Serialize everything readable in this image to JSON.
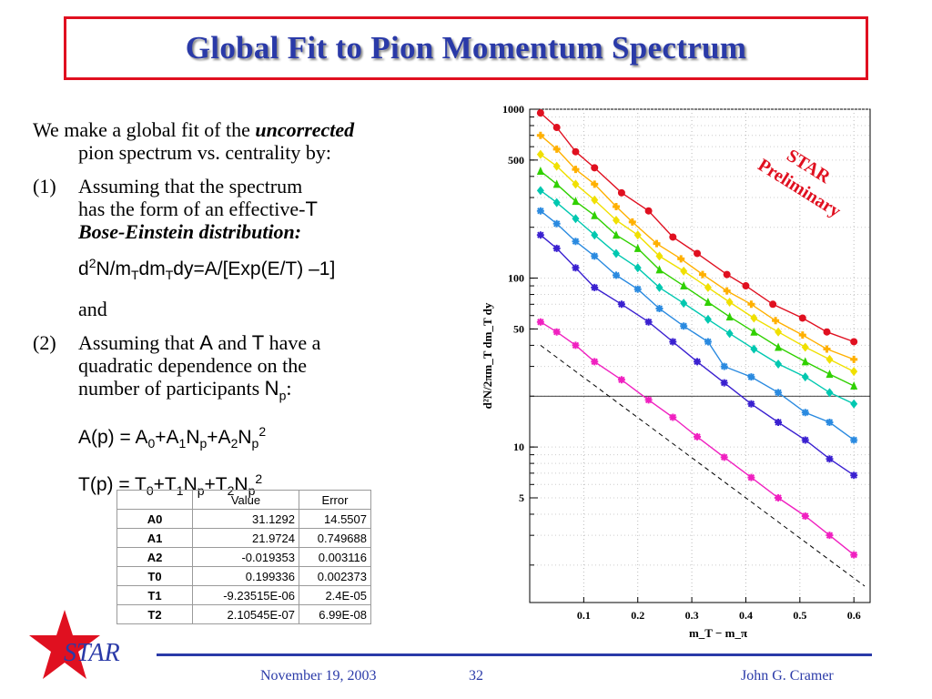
{
  "title": "Global Fit to Pion Momentum Spectrum",
  "text": {
    "intro_pre": "We make a global fit of the ",
    "intro_em": "uncorrected",
    "intro_line2": "pion spectrum vs. centrality by:",
    "item1_num": "(1)",
    "item1_line1": "Assuming that the spectrum",
    "item1_line2_pre": "has the form of an effective-",
    "item1_T": "T",
    "item1_line3": "Bose-Einstein distribution:",
    "formula1": {
      "a": "d",
      "b": "2",
      "c": "N/m",
      "d": "T",
      "e": "dm",
      "f": "T",
      "g": "dy=A/[Exp(E/T) –1]"
    },
    "and": "and",
    "item2_num": "(2)",
    "item2_pre": "Assuming that ",
    "item2_A": "A",
    "item2_and": " and ",
    "item2_T": "T",
    "item2_post": " have a",
    "item2_line2": "quadratic dependence on the",
    "item2_line3_pre": "number of participants ",
    "item2_N": "N",
    "item2_p": "p",
    "item2_colon": ":",
    "formulaA": {
      "head": "A(p) = A",
      "s0": "0",
      "p1": "+A",
      "s1": "1",
      "n1": "N",
      "sp1": "p",
      "p2": "+A",
      "s2": "2",
      "n2": "N",
      "sp2": "p",
      "sup": "2"
    },
    "formulaT": {
      "head": "T(p) = T",
      "s0": "0",
      "p1": "+T",
      "s1": "1",
      "n1": "N",
      "sp1": "p",
      "p2": "+T",
      "s2": "2",
      "n2": "N",
      "sp2": "p",
      "sup": "2"
    }
  },
  "table": {
    "headers": [
      "",
      "Value",
      "Error"
    ],
    "rows": [
      [
        "A0",
        "31.1292",
        "14.5507"
      ],
      [
        "A1",
        "21.9724",
        "0.749688"
      ],
      [
        "A2",
        "-0.019353",
        "0.003116"
      ],
      [
        "T0",
        "0.199336",
        "0.002373"
      ],
      [
        "T1",
        "-9.23515E-06",
        "2.4E-05"
      ],
      [
        "T2",
        "2.10545E-07",
        "6.99E-08"
      ]
    ]
  },
  "chart_data": {
    "type": "scatter",
    "xlabel": "m_T − m_π",
    "ylabel": "d²N/2πm_T dm_T dy",
    "xlim": [
      0.0,
      0.63
    ],
    "ylim": [
      1.2,
      1000
    ],
    "log_y": true,
    "xticks": [
      "0.1",
      "0.2",
      "0.3",
      "0.4",
      "0.5",
      "0.6"
    ],
    "yticks": [
      "1000",
      "500",
      "100",
      "50",
      "10",
      "5"
    ],
    "annotation": "STAR Preliminary",
    "annotation_color": "#e01020",
    "reference_line_y": 20,
    "series": [
      {
        "color": "#e01020",
        "marker": "circle",
        "x": [
          0.02,
          0.05,
          0.085,
          0.12,
          0.17,
          0.22,
          0.265,
          0.31,
          0.365,
          0.4,
          0.45,
          0.505,
          0.55,
          0.6
        ],
        "y": [
          950,
          780,
          560,
          450,
          320,
          250,
          175,
          140,
          105,
          90,
          70,
          58,
          48,
          42
        ]
      },
      {
        "color": "#ffb000",
        "marker": "plus",
        "x": [
          0.02,
          0.05,
          0.085,
          0.12,
          0.16,
          0.19,
          0.235,
          0.28,
          0.32,
          0.365,
          0.41,
          0.455,
          0.505,
          0.55,
          0.6
        ],
        "y": [
          700,
          580,
          440,
          360,
          265,
          215,
          160,
          130,
          105,
          84,
          70,
          56,
          46,
          38,
          33
        ]
      },
      {
        "color": "#f0e000",
        "marker": "diamond",
        "x": [
          0.02,
          0.05,
          0.085,
          0.12,
          0.16,
          0.2,
          0.24,
          0.285,
          0.33,
          0.37,
          0.415,
          0.46,
          0.51,
          0.555,
          0.6
        ],
        "y": [
          540,
          460,
          360,
          290,
          220,
          180,
          135,
          110,
          88,
          72,
          58,
          48,
          39,
          33,
          28
        ]
      },
      {
        "color": "#30d000",
        "marker": "triangle",
        "x": [
          0.02,
          0.05,
          0.085,
          0.12,
          0.16,
          0.2,
          0.24,
          0.285,
          0.33,
          0.37,
          0.415,
          0.46,
          0.51,
          0.555,
          0.6
        ],
        "y": [
          430,
          360,
          285,
          235,
          180,
          150,
          112,
          90,
          72,
          59,
          48,
          39,
          32,
          27,
          23
        ]
      },
      {
        "color": "#00c8b0",
        "marker": "diamond",
        "x": [
          0.02,
          0.05,
          0.085,
          0.12,
          0.16,
          0.2,
          0.24,
          0.285,
          0.33,
          0.37,
          0.415,
          0.46,
          0.51,
          0.555,
          0.6
        ],
        "y": [
          330,
          280,
          225,
          180,
          140,
          115,
          88,
          71,
          57,
          47,
          38,
          31,
          26,
          21,
          18
        ]
      },
      {
        "color": "#2a8ae0",
        "marker": "star",
        "x": [
          0.02,
          0.05,
          0.085,
          0.12,
          0.16,
          0.2,
          0.24,
          0.285,
          0.33,
          0.36,
          0.41,
          0.46,
          0.51,
          0.555,
          0.6
        ],
        "y": [
          250,
          210,
          165,
          135,
          104,
          86,
          66,
          52,
          42,
          30,
          26,
          21,
          16,
          14,
          11
        ]
      },
      {
        "color": "#3a20d0",
        "marker": "star",
        "x": [
          0.02,
          0.05,
          0.085,
          0.12,
          0.17,
          0.22,
          0.265,
          0.31,
          0.36,
          0.41,
          0.46,
          0.51,
          0.555,
          0.6
        ],
        "y": [
          180,
          150,
          115,
          88,
          70,
          55,
          42,
          32,
          24,
          18,
          14,
          11,
          8.5,
          6.8
        ]
      },
      {
        "color": "#f020c0",
        "marker": "star",
        "x": [
          0.02,
          0.05,
          0.085,
          0.12,
          0.17,
          0.22,
          0.265,
          0.31,
          0.36,
          0.41,
          0.46,
          0.51,
          0.555,
          0.6
        ],
        "y": [
          55,
          48,
          40,
          32,
          25,
          19,
          15,
          11.5,
          8.7,
          6.6,
          5.0,
          3.9,
          3.0,
          2.3
        ]
      }
    ],
    "dashed_reference": {
      "x": [
        0.02,
        0.62
      ],
      "y": [
        40,
        1.5
      ]
    }
  },
  "footer": {
    "logo": "STAR",
    "date": "November 19, 2003",
    "page": "32",
    "author": "John G. Cramer"
  }
}
